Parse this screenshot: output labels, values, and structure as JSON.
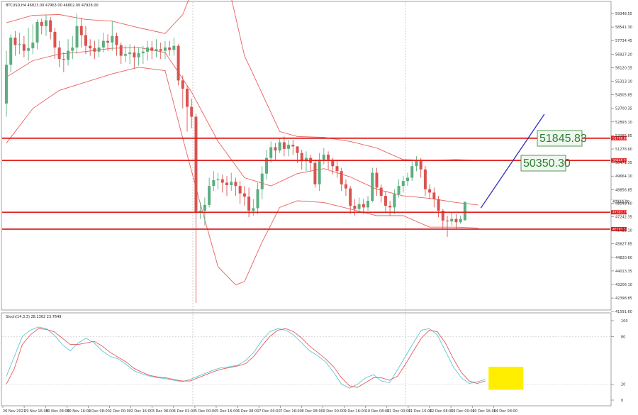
{
  "chart_data": {
    "type": "candlestick",
    "symbol_header": "BTCUSD,H4  46823.00 47963.00 46802.00 47928.00",
    "price_axis_ticks": [
      "59348.55",
      "58541.30",
      "57734.45",
      "56927.20",
      "56120.35",
      "55313.10",
      "54505.85",
      "53700.35",
      "52893.10",
      "52085.85",
      "51278.60",
      "50471.35",
      "49664.10",
      "48856.85",
      "48049.60",
      "47242.35",
      "46435.10",
      "45627.85",
      "44820.60",
      "44013.35",
      "43206.10",
      "42398.85",
      "41591.60"
    ],
    "time_axis_ticks": [
      "26 Nov 2021",
      "29 Nov 16:00",
      "30 Nov 08:00",
      "30 Nov 16:00",
      "1 Dec 08:00",
      "2 Dec 00:00",
      "2 Dec 16:00",
      "3 Dec 08:00",
      "4 Dec 01:00",
      "5 Dec 00:00",
      "5 Dec 16:00",
      "6 Dec 08:00",
      "7 Dec 00:00",
      "7 Dec 16:00",
      "8 Dec 08:00",
      "9 Dec 00:00",
      "9 Dec 16:00",
      "10 Dec 08:00",
      "11 Dec 00:00",
      "11 Dec 16:00",
      "12 Dec 08:00",
      "13 Dec 00:00",
      "13 Dec 16:00",
      "14 Dec 08:00"
    ],
    "y_range": [
      41590,
      59750
    ],
    "candles": [
      [
        53900,
        56250,
        53100,
        57100
      ],
      [
        56250,
        57900,
        55800,
        58100
      ],
      [
        57900,
        57450,
        56800,
        58300
      ],
      [
        57450,
        57500,
        56900,
        58200
      ],
      [
        57500,
        57100,
        56700,
        58000
      ],
      [
        57100,
        57250,
        56500,
        58500
      ],
      [
        57250,
        57600,
        56900,
        58700
      ],
      [
        57600,
        58850,
        57200,
        59000
      ],
      [
        58850,
        58600,
        58100,
        59050
      ],
      [
        58600,
        58950,
        58000,
        59250
      ],
      [
        58950,
        58250,
        57800,
        59150
      ],
      [
        58250,
        57300,
        56600,
        58500
      ],
      [
        57300,
        56600,
        56100,
        57700
      ],
      [
        56600,
        56550,
        55800,
        57000
      ],
      [
        56550,
        57100,
        56200,
        57800
      ],
      [
        57100,
        57300,
        56600,
        58000
      ],
      [
        57300,
        58600,
        56900,
        59350
      ],
      [
        58600,
        58050,
        57300,
        59100
      ],
      [
        58050,
        57400,
        56900,
        58600
      ],
      [
        57400,
        57250,
        56800,
        57800
      ],
      [
        57250,
        57050,
        56600,
        57700
      ],
      [
        57050,
        57300,
        56700,
        57800
      ],
      [
        57300,
        57700,
        57000,
        58200
      ],
      [
        57700,
        57600,
        57100,
        58100
      ],
      [
        57600,
        58000,
        57100,
        58900
      ],
      [
        58000,
        57450,
        56800,
        58200
      ],
      [
        57450,
        56800,
        56300,
        57600
      ],
      [
        56800,
        56900,
        56400,
        57400
      ],
      [
        56900,
        57000,
        56300,
        57500
      ],
      [
        57000,
        56700,
        56000,
        57400
      ],
      [
        56700,
        56950,
        56200,
        57300
      ],
      [
        56950,
        57050,
        56300,
        57400
      ],
      [
        57050,
        57300,
        56500,
        57700
      ],
      [
        57300,
        57100,
        56600,
        57700
      ],
      [
        57100,
        57200,
        56700,
        57800
      ],
      [
        57200,
        57100,
        56600,
        57600
      ],
      [
        57100,
        57300,
        56600,
        57700
      ],
      [
        57300,
        57150,
        56800,
        57700
      ],
      [
        57150,
        57400,
        56800,
        57900
      ],
      [
        57400,
        55300,
        55000,
        57500
      ],
      [
        55300,
        54800,
        53600,
        55600
      ],
      [
        54800,
        53700,
        52200,
        55000
      ],
      [
        53700,
        53100,
        52400,
        54200
      ],
      [
        53100,
        47300,
        41800,
        53300
      ],
      [
        47300,
        47400,
        46900,
        47900
      ],
      [
        47400,
        47750,
        46500,
        48200
      ],
      [
        47750,
        48900,
        47600,
        49400
      ],
      [
        48900,
        49250,
        48600,
        49800
      ],
      [
        49250,
        49300,
        48700,
        49700
      ],
      [
        49300,
        49100,
        48500,
        49600
      ],
      [
        49100,
        48950,
        48300,
        49500
      ],
      [
        48950,
        49150,
        48600,
        49700
      ],
      [
        49150,
        48900,
        48300,
        49400
      ],
      [
        48900,
        48450,
        47800,
        49200
      ],
      [
        48450,
        48250,
        47700,
        48900
      ],
      [
        48250,
        47400,
        47000,
        48800
      ],
      [
        47400,
        47550,
        47100,
        48100
      ],
      [
        47550,
        48700,
        47200,
        49100
      ],
      [
        48700,
        49650,
        48100,
        50100
      ],
      [
        49650,
        50600,
        49300,
        51100
      ],
      [
        50600,
        51250,
        50300,
        51600
      ],
      [
        51250,
        51050,
        50500,
        51500
      ],
      [
        51050,
        51550,
        50900,
        51800
      ],
      [
        51550,
        51150,
        50700,
        51900
      ],
      [
        51150,
        51400,
        50700,
        51700
      ],
      [
        51400,
        51300,
        50800,
        51700
      ],
      [
        51300,
        50900,
        50300,
        51300
      ],
      [
        50900,
        50400,
        49900,
        51100
      ],
      [
        50400,
        50600,
        49800,
        51000
      ],
      [
        50600,
        50300,
        49800,
        50800
      ],
      [
        50300,
        49000,
        48800,
        50500
      ],
      [
        49000,
        50500,
        48600,
        50900
      ],
      [
        50500,
        50800,
        50200,
        51200
      ],
      [
        50800,
        50500,
        49900,
        51000
      ],
      [
        50500,
        50100,
        49600,
        50600
      ],
      [
        50100,
        49800,
        49400,
        50400
      ],
      [
        49800,
        49000,
        48600,
        50000
      ],
      [
        49000,
        48750,
        48300,
        49300
      ],
      [
        48750,
        47700,
        47200,
        48900
      ],
      [
        47700,
        47500,
        47100,
        48100
      ],
      [
        47500,
        47800,
        47300,
        48200
      ],
      [
        47800,
        47600,
        47200,
        48100
      ],
      [
        47600,
        48000,
        47400,
        48300
      ],
      [
        48000,
        49700,
        47900,
        50000
      ],
      [
        49700,
        48800,
        48300,
        50000
      ],
      [
        48800,
        48300,
        47900,
        49000
      ],
      [
        48300,
        47700,
        47300,
        48600
      ],
      [
        47700,
        47600,
        47100,
        48000
      ],
      [
        47600,
        48400,
        47200,
        48700
      ],
      [
        48400,
        48900,
        48200,
        49300
      ],
      [
        48900,
        49200,
        48500,
        49500
      ],
      [
        49200,
        49400,
        48900,
        49700
      ],
      [
        49400,
        50100,
        49200,
        50500
      ],
      [
        50100,
        50450,
        49800,
        50700
      ],
      [
        50450,
        49900,
        49400,
        50600
      ],
      [
        49900,
        48700,
        48300,
        50100
      ],
      [
        48700,
        48500,
        48100,
        49000
      ],
      [
        48500,
        48100,
        47600,
        48800
      ],
      [
        48100,
        47400,
        47000,
        48300
      ],
      [
        47400,
        46800,
        46300,
        47500
      ],
      [
        46800,
        46750,
        45800,
        47100
      ],
      [
        46750,
        46900,
        46500,
        47300
      ],
      [
        46900,
        46700,
        46300,
        47200
      ],
      [
        46700,
        46900,
        46600,
        47100
      ],
      [
        46823,
        47928,
        46802,
        47963
      ]
    ],
    "bollinger": {
      "period": 20,
      "middle": [
        [
          0,
          55500
        ],
        [
          6,
          56500
        ],
        [
          12,
          56900
        ],
        [
          18,
          57050
        ],
        [
          24,
          57250
        ],
        [
          30,
          57300
        ],
        [
          36,
          57000
        ],
        [
          42,
          54600
        ],
        [
          48,
          51600
        ],
        [
          54,
          49400
        ],
        [
          60,
          48900
        ],
        [
          66,
          49650
        ],
        [
          72,
          49950
        ],
        [
          78,
          49450
        ],
        [
          84,
          48700
        ],
        [
          90,
          48300
        ],
        [
          96,
          48150
        ],
        [
          102,
          47900
        ],
        [
          107,
          47750
        ]
      ],
      "upper": [
        [
          0,
          58800
        ],
        [
          6,
          59250
        ],
        [
          12,
          59300
        ],
        [
          18,
          59000
        ],
        [
          24,
          58900
        ],
        [
          30,
          58500
        ],
        [
          36,
          58150
        ],
        [
          40,
          59300
        ],
        [
          44,
          62000
        ],
        [
          48,
          63800
        ],
        [
          54,
          56800
        ],
        [
          58,
          54500
        ],
        [
          62,
          52200
        ],
        [
          66,
          51900
        ],
        [
          72,
          51850
        ],
        [
          78,
          51600
        ],
        [
          84,
          51200
        ],
        [
          90,
          50500
        ],
        [
          96,
          50450
        ],
        [
          102,
          50500
        ],
        [
          107,
          50450
        ]
      ],
      "lower": [
        [
          0,
          51500
        ],
        [
          6,
          53600
        ],
        [
          12,
          54700
        ],
        [
          18,
          55200
        ],
        [
          24,
          55700
        ],
        [
          30,
          56100
        ],
        [
          36,
          55900
        ],
        [
          40,
          51800
        ],
        [
          44,
          47800
        ],
        [
          48,
          44000
        ],
        [
          52,
          42900
        ],
        [
          54,
          43100
        ],
        [
          58,
          45500
        ],
        [
          62,
          47600
        ],
        [
          66,
          48000
        ],
        [
          72,
          47900
        ],
        [
          78,
          47500
        ],
        [
          84,
          47100
        ],
        [
          90,
          47100
        ],
        [
          96,
          46400
        ],
        [
          102,
          46400
        ],
        [
          107,
          46350
        ]
      ]
    },
    "horizontal_levels": [
      {
        "price": 51796.8,
        "label": "51796.80"
      },
      {
        "price": 50448.37,
        "label": "50448.37"
      },
      {
        "price": 47303.76,
        "label": "47303.76"
      },
      {
        "price": 46280.51,
        "label": "46280.51"
      }
    ],
    "current_price_label": "47928.00",
    "projection_targets": [
      {
        "value": "51845.83"
      },
      {
        "value": "50350.30"
      }
    ],
    "trend_line": {
      "from": {
        "bar": 107.6,
        "price": 47560
      },
      "to": {
        "bar": 122,
        "price": 53250
      }
    },
    "stochastic": {
      "header": "Stoch(14,3,3) 28.2362 23.7649",
      "ticks": [
        "100",
        "80",
        "20",
        "0"
      ],
      "levels": [
        80,
        20
      ],
      "k": [
        [
          0,
          30
        ],
        [
          2,
          55
        ],
        [
          4,
          80
        ],
        [
          6,
          88
        ],
        [
          8,
          92
        ],
        [
          10,
          90
        ],
        [
          12,
          82
        ],
        [
          14,
          70
        ],
        [
          16,
          62
        ],
        [
          18,
          72
        ],
        [
          20,
          78
        ],
        [
          22,
          72
        ],
        [
          24,
          62
        ],
        [
          26,
          55
        ],
        [
          28,
          52
        ],
        [
          30,
          45
        ],
        [
          32,
          37
        ],
        [
          34,
          33
        ],
        [
          36,
          30
        ],
        [
          38,
          28
        ],
        [
          40,
          27
        ],
        [
          42,
          25
        ],
        [
          44,
          23
        ],
        [
          46,
          26
        ],
        [
          48,
          30
        ],
        [
          50,
          34
        ],
        [
          52,
          38
        ],
        [
          54,
          41
        ],
        [
          56,
          42
        ],
        [
          58,
          44
        ],
        [
          60,
          50
        ],
        [
          62,
          60
        ],
        [
          64,
          75
        ],
        [
          66,
          86
        ],
        [
          68,
          90
        ],
        [
          70,
          88
        ],
        [
          72,
          82
        ],
        [
          74,
          72
        ],
        [
          76,
          62
        ],
        [
          78,
          56
        ],
        [
          80,
          48
        ],
        [
          82,
          35
        ],
        [
          84,
          20
        ],
        [
          86,
          15
        ],
        [
          88,
          20
        ],
        [
          90,
          28
        ],
        [
          92,
          32
        ],
        [
          94,
          24
        ],
        [
          96,
          22
        ],
        [
          98,
          38
        ],
        [
          100,
          55
        ],
        [
          102,
          72
        ],
        [
          104,
          88
        ],
        [
          106,
          90
        ],
        [
          108,
          82
        ],
        [
          110,
          62
        ],
        [
          112,
          42
        ],
        [
          114,
          28
        ],
        [
          116,
          21
        ],
        [
          118,
          23
        ],
        [
          120,
          26
        ]
      ],
      "d": [
        [
          0,
          20
        ],
        [
          2,
          40
        ],
        [
          4,
          70
        ],
        [
          6,
          82
        ],
        [
          8,
          90
        ],
        [
          10,
          89
        ],
        [
          12,
          86
        ],
        [
          14,
          78
        ],
        [
          16,
          70
        ],
        [
          18,
          70
        ],
        [
          20,
          72
        ],
        [
          22,
          74
        ],
        [
          24,
          68
        ],
        [
          26,
          60
        ],
        [
          28,
          54
        ],
        [
          30,
          48
        ],
        [
          32,
          40
        ],
        [
          34,
          35
        ],
        [
          36,
          31
        ],
        [
          38,
          29
        ],
        [
          40,
          28
        ],
        [
          42,
          26
        ],
        [
          44,
          24
        ],
        [
          46,
          24
        ],
        [
          48,
          28
        ],
        [
          50,
          32
        ],
        [
          52,
          36
        ],
        [
          54,
          39
        ],
        [
          56,
          41
        ],
        [
          58,
          43
        ],
        [
          60,
          46
        ],
        [
          62,
          55
        ],
        [
          64,
          68
        ],
        [
          66,
          80
        ],
        [
          68,
          88
        ],
        [
          70,
          90
        ],
        [
          72,
          86
        ],
        [
          74,
          78
        ],
        [
          76,
          68
        ],
        [
          78,
          60
        ],
        [
          80,
          52
        ],
        [
          82,
          42
        ],
        [
          84,
          28
        ],
        [
          86,
          18
        ],
        [
          88,
          16
        ],
        [
          90,
          22
        ],
        [
          92,
          28
        ],
        [
          94,
          28
        ],
        [
          96,
          25
        ],
        [
          98,
          30
        ],
        [
          100,
          45
        ],
        [
          102,
          62
        ],
        [
          104,
          78
        ],
        [
          106,
          88
        ],
        [
          108,
          86
        ],
        [
          110,
          72
        ],
        [
          112,
          52
        ],
        [
          114,
          35
        ],
        [
          116,
          24
        ],
        [
          118,
          21
        ],
        [
          120,
          24
        ]
      ],
      "highlight": {
        "from_bar": 110,
        "to_bar": 121,
        "low": 13,
        "high": 42
      }
    }
  },
  "colors": {
    "bull": "#5cad7f",
    "bear": "#d9534f",
    "bollinger": "#e8605c",
    "level": "#e02020",
    "trend": "#3030c0",
    "stoch_k": "#5bc8d8",
    "stoch_d": "#e85a5a",
    "highlight": "#ffee00",
    "target_text": "#2e7d32"
  }
}
